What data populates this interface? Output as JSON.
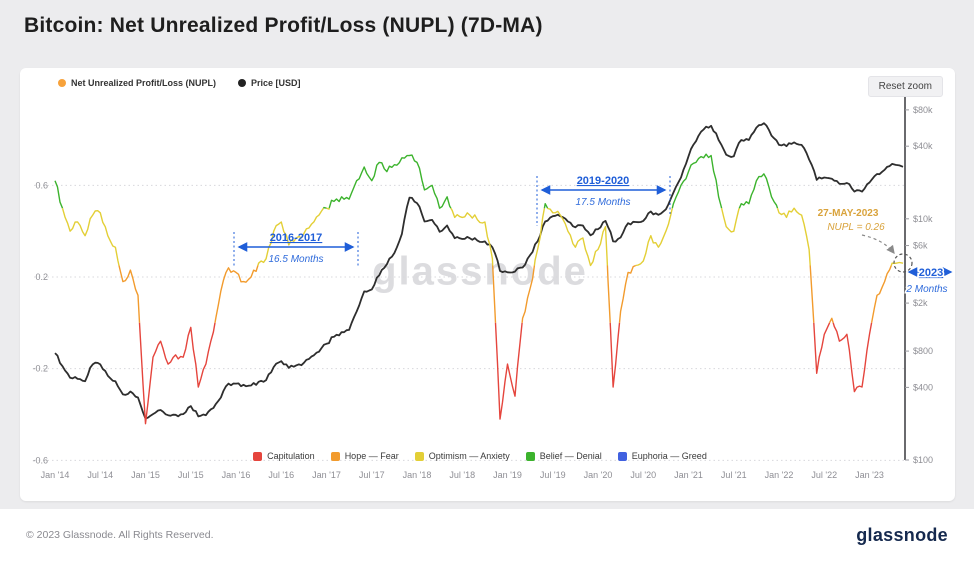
{
  "page": {
    "title": "Bitcoin: Net Unrealized Profit/Loss (NUPL) (7D-MA)",
    "watermark": "glassnode",
    "reset_zoom": "Reset zoom"
  },
  "top_legend": {
    "items": [
      {
        "label": "Net Unrealized Profit/Loss (NUPL)",
        "color": "#f7a23b"
      },
      {
        "label": "Price [USD]",
        "color": "#222222"
      }
    ]
  },
  "annotations": {
    "accent_blue": "#1f5ed8",
    "accent_gold": "#d9a33c",
    "cycle1": {
      "title": "2016-2017",
      "subtitle": "16.5 Months"
    },
    "cycle2": {
      "title": "2019-2020",
      "subtitle": "17.5 Months"
    },
    "current": {
      "date": "27-MAY-2023",
      "value": "NUPL = 0.26"
    },
    "cycle3": {
      "title": "2023",
      "subtitle": "2 Months"
    }
  },
  "footer": {
    "copyright": "© 2023 Glassnode. All Rights Reserved.",
    "logo": "glassnode"
  },
  "chart_data": {
    "type": "line",
    "title": "Bitcoin: Net Unrealized Profit/Loss (NUPL) (7D-MA)",
    "x_unit": "decimal_year",
    "x_range": [
      2014.0,
      2023.37
    ],
    "x_tick_labels": [
      "Jan '14",
      "Jul '14",
      "Jan '15",
      "Jul '15",
      "Jan '16",
      "Jul '16",
      "Jan '17",
      "Jul '17",
      "Jan '18",
      "Jul '18",
      "Jan '19",
      "Jul '19",
      "Jan '20",
      "Jul '20",
      "Jan '21",
      "Jul '21",
      "Jan '22",
      "Jul '22",
      "Jan '23"
    ],
    "y_left": {
      "label": "NUPL",
      "ticks": [
        0.6,
        0.2,
        -0.2,
        -0.6
      ],
      "range": [
        -0.6,
        1.1
      ]
    },
    "y_right": {
      "label": "Price [USD]",
      "scale": "log",
      "ticks": [
        "$80k",
        "$40k",
        "$10k",
        "$6k",
        "$2k",
        "$800",
        "$400",
        "$100"
      ],
      "tick_values": [
        80000,
        40000,
        10000,
        6000,
        2000,
        800,
        400,
        100
      ]
    },
    "price_color": "#2e2e2e",
    "nupl_zones": [
      {
        "label": "Capitulation",
        "max": 0,
        "color": "#e5453d"
      },
      {
        "label": "Hope — Fear",
        "max": 0.25,
        "color": "#f29b2d"
      },
      {
        "label": "Optimism — Anxiety",
        "max": 0.5,
        "color": "#e3cf36"
      },
      {
        "label": "Belief — Denial",
        "max": 0.75,
        "color": "#3cb32d"
      },
      {
        "label": "Euphoria — Greed",
        "max": 99,
        "color": "#4161e0"
      }
    ],
    "x": [
      2014.0,
      2014.083,
      2014.167,
      2014.25,
      2014.333,
      2014.417,
      2014.5,
      2014.583,
      2014.667,
      2014.75,
      2014.833,
      2014.917,
      2015.0,
      2015.083,
      2015.167,
      2015.25,
      2015.333,
      2015.417,
      2015.5,
      2015.583,
      2015.667,
      2015.75,
      2015.833,
      2015.917,
      2016.0,
      2016.083,
      2016.167,
      2016.25,
      2016.333,
      2016.417,
      2016.5,
      2016.583,
      2016.667,
      2016.75,
      2016.833,
      2016.917,
      2017.0,
      2017.083,
      2017.167,
      2017.25,
      2017.333,
      2017.417,
      2017.5,
      2017.583,
      2017.667,
      2017.75,
      2017.833,
      2017.917,
      2018.0,
      2018.083,
      2018.167,
      2018.25,
      2018.333,
      2018.417,
      2018.5,
      2018.583,
      2018.667,
      2018.75,
      2018.833,
      2018.917,
      2019.0,
      2019.083,
      2019.167,
      2019.25,
      2019.333,
      2019.417,
      2019.5,
      2019.583,
      2019.667,
      2019.75,
      2019.833,
      2019.917,
      2020.0,
      2020.083,
      2020.167,
      2020.25,
      2020.333,
      2020.417,
      2020.5,
      2020.583,
      2020.667,
      2020.75,
      2020.833,
      2020.917,
      2021.0,
      2021.083,
      2021.167,
      2021.25,
      2021.333,
      2021.417,
      2021.5,
      2021.583,
      2021.667,
      2021.75,
      2021.833,
      2021.917,
      2022.0,
      2022.083,
      2022.167,
      2022.25,
      2022.333,
      2022.417,
      2022.5,
      2022.583,
      2022.667,
      2022.75,
      2022.833,
      2022.917,
      2023.0,
      2023.083,
      2023.167,
      2023.25,
      2023.37
    ],
    "series": [
      {
        "name": "Net Unrealized Profit/Loss (NUPL)",
        "values": [
          0.62,
          0.5,
          0.4,
          0.44,
          0.38,
          0.47,
          0.48,
          0.38,
          0.33,
          0.18,
          0.23,
          0.12,
          -0.44,
          -0.15,
          -0.08,
          -0.18,
          -0.14,
          -0.15,
          -0.02,
          -0.28,
          -0.18,
          -0.04,
          0.14,
          0.24,
          0.22,
          0.18,
          0.2,
          0.26,
          0.28,
          0.4,
          0.44,
          0.34,
          0.37,
          0.39,
          0.43,
          0.47,
          0.5,
          0.53,
          0.55,
          0.54,
          0.62,
          0.68,
          0.62,
          0.7,
          0.66,
          0.69,
          0.72,
          0.73,
          0.7,
          0.58,
          0.6,
          0.5,
          0.55,
          0.46,
          0.46,
          0.47,
          0.45,
          0.44,
          0.28,
          -0.42,
          -0.18,
          -0.32,
          0.02,
          0.15,
          0.32,
          0.52,
          0.48,
          0.47,
          0.4,
          0.33,
          0.37,
          0.25,
          0.32,
          0.42,
          -0.28,
          0.05,
          0.22,
          0.25,
          0.27,
          0.38,
          0.33,
          0.4,
          0.52,
          0.6,
          0.66,
          0.7,
          0.72,
          0.73,
          0.55,
          0.42,
          0.4,
          0.52,
          0.52,
          0.62,
          0.65,
          0.55,
          0.48,
          0.46,
          0.5,
          0.47,
          0.32,
          -0.22,
          -0.05,
          0.02,
          -0.08,
          -0.05,
          -0.3,
          -0.28,
          -0.05,
          0.12,
          0.18,
          0.26,
          0.26
        ]
      },
      {
        "name": "Price [USD]",
        "values": [
          770,
          600,
          480,
          470,
          450,
          620,
          620,
          500,
          450,
          350,
          370,
          330,
          220,
          240,
          260,
          235,
          237,
          240,
          280,
          230,
          235,
          270,
          330,
          430,
          430,
          420,
          415,
          445,
          460,
          590,
          660,
          580,
          610,
          640,
          720,
          790,
          920,
          1050,
          1150,
          1200,
          1700,
          2500,
          2600,
          3400,
          4200,
          5200,
          7500,
          15000,
          13500,
          9500,
          9800,
          7800,
          8800,
          6900,
          6800,
          6900,
          6600,
          6500,
          5800,
          3700,
          3600,
          3650,
          3950,
          5000,
          6500,
          9500,
          10500,
          10500,
          9500,
          8500,
          8800,
          7300,
          8200,
          9600,
          6500,
          7000,
          9200,
          9400,
          9600,
          11500,
          10800,
          12000,
          16500,
          22000,
          33000,
          44000,
          55000,
          59000,
          45000,
          34000,
          33000,
          45000,
          45000,
          57000,
          62000,
          49000,
          41000,
          40000,
          43000,
          41000,
          31000,
          21000,
          22000,
          21500,
          19500,
          19800,
          16800,
          16800,
          20000,
          23500,
          25500,
          28500,
          27000
        ]
      }
    ]
  }
}
